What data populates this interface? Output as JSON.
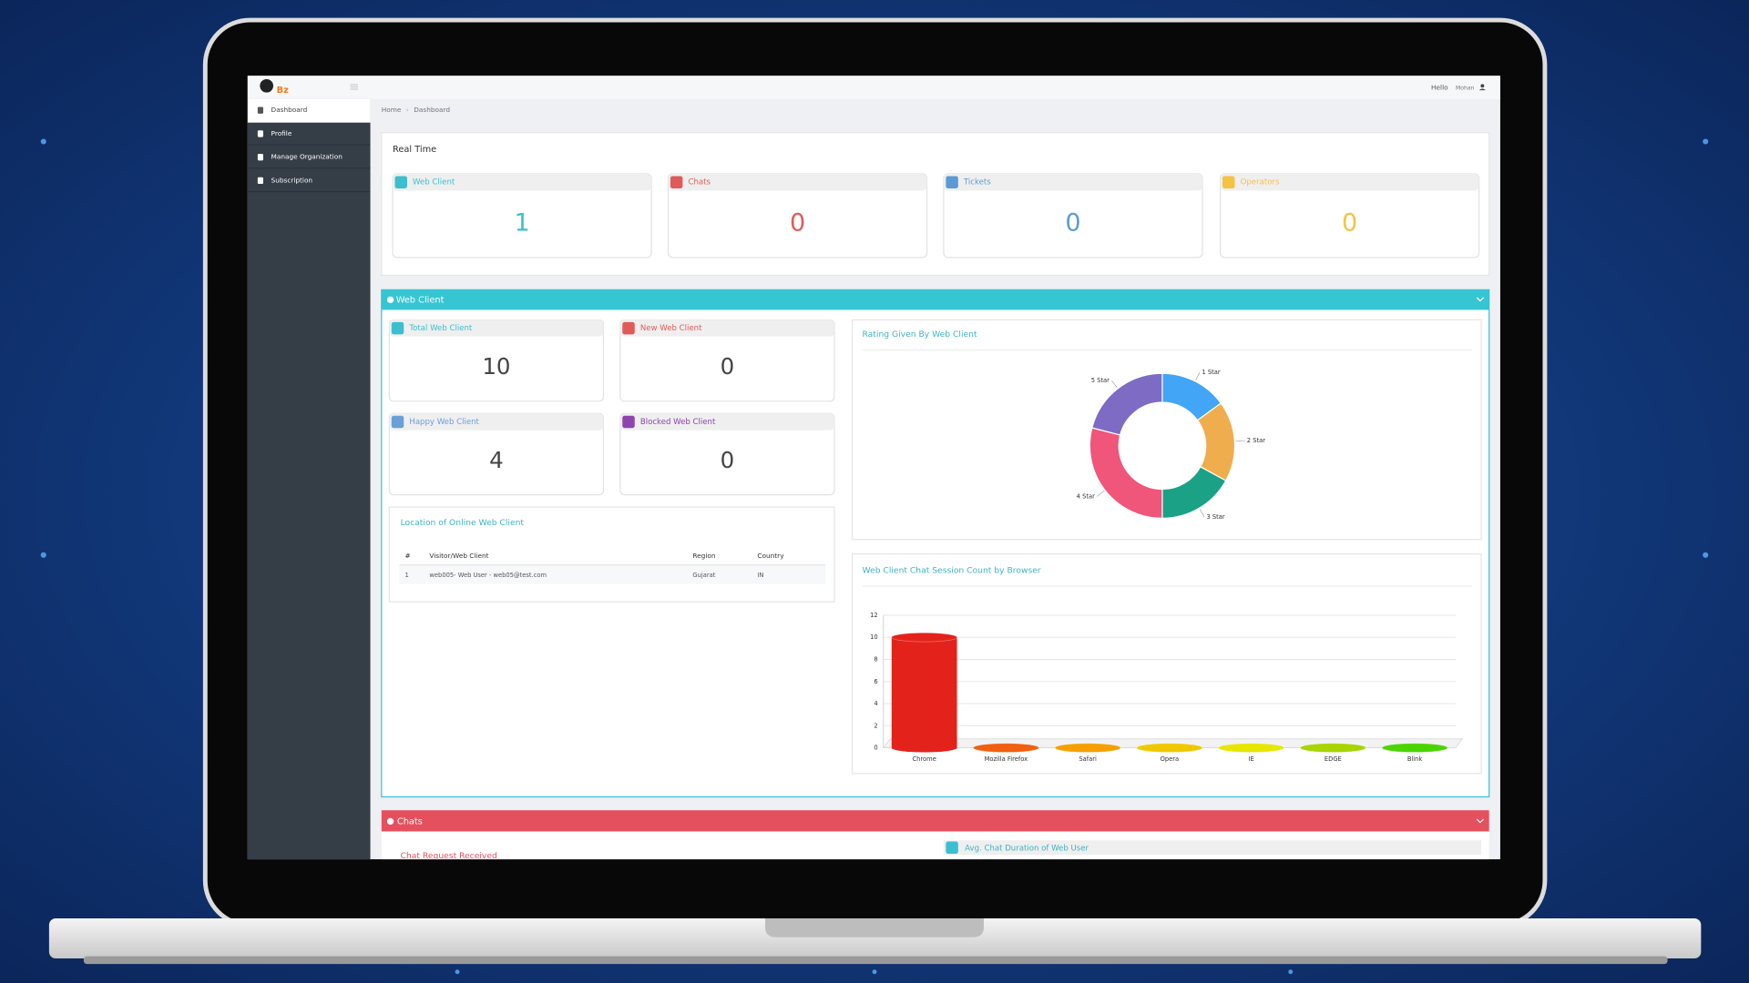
{
  "topbar": {
    "logo": "Bz",
    "greeting": "Hello",
    "user": "Mohan"
  },
  "sidebar": {
    "items": [
      "Dashboard",
      "Profile",
      "Manage Organization",
      "Subscription"
    ]
  },
  "breadcrumb": [
    "Home",
    "Dashboard"
  ],
  "realtime": {
    "title": "Real Time",
    "cards": [
      {
        "label": "Web Client",
        "value": 1
      },
      {
        "label": "Chats",
        "value": 0
      },
      {
        "label": "Tickets",
        "value": 0
      },
      {
        "label": "Operators",
        "value": 0
      }
    ]
  },
  "web_client": {
    "title": "Web Client",
    "cards": [
      {
        "label": "Total Web Client",
        "value": 10
      },
      {
        "label": "New Web Client",
        "value": 0
      },
      {
        "label": "Happy Web Client",
        "value": 4
      },
      {
        "label": "Blocked Web Client",
        "value": 0
      }
    ],
    "location": {
      "title": "Location of Online Web Client",
      "columns": [
        "#",
        "Visitor/Web Client",
        "Region",
        "Country"
      ],
      "rows": [
        [
          "1",
          "web005- Web User - web05@test.com",
          "Gujarat",
          "IN"
        ]
      ]
    },
    "rating_chart": {
      "type": "pie",
      "title": "Rating Given By Web Client",
      "categories": [
        "1 Star",
        "2 Star",
        "3 Star",
        "4 Star",
        "5 Star"
      ],
      "values": [
        15,
        18,
        17,
        29,
        21
      ],
      "colors": [
        "#42a5f5",
        "#f0ad4e",
        "#1ba185",
        "#f0557a",
        "#7e6bc4"
      ]
    },
    "browser_chart": {
      "type": "bar",
      "title": "Web Client Chat Session Count by Browser",
      "categories": [
        "Chrome",
        "Mozilla Firefox",
        "Safari",
        "Opera",
        "IE",
        "EDGE",
        "Blink"
      ],
      "values": [
        10,
        0,
        0,
        0,
        0,
        0,
        0
      ],
      "colors": [
        "#e3231b",
        "#f06010",
        "#f5a000",
        "#f0c800",
        "#e6e600",
        "#a8d400",
        "#4cd400"
      ],
      "ylim": [
        0,
        12
      ],
      "yticks": [
        0,
        2,
        4,
        6,
        8,
        10,
        12
      ],
      "grid": true
    }
  },
  "chats": {
    "title": "Chats",
    "sections": [
      "Chat Request Received",
      "Avg. Chat Duration of Web User"
    ]
  }
}
